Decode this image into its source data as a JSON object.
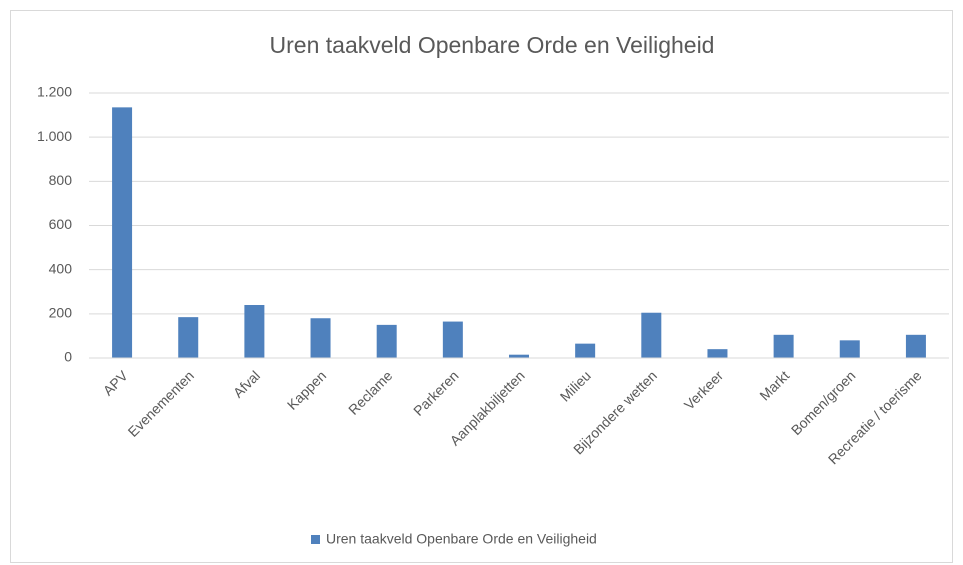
{
  "chart_data": {
    "type": "bar",
    "title": "Uren taakveld Openbare Orde en Veiligheid",
    "categories": [
      "APV",
      "Evenementen",
      "Afval",
      "Kappen",
      "Reclame",
      "Parkeren",
      "Aanplakbiljetten",
      "Milieu",
      "Bijzondere wetten",
      "Verkeer",
      "Markt",
      "Bomen/groen",
      "Recreatie / toerisme"
    ],
    "series": [
      {
        "name": "Uren taakveld Openbare Orde en Veiligheid",
        "color": "#4f81bd",
        "values": [
          1135,
          185,
          240,
          180,
          150,
          165,
          15,
          65,
          205,
          40,
          105,
          80,
          105
        ]
      }
    ],
    "ylim": [
      0,
      1200
    ],
    "yticks": [
      0,
      200,
      400,
      600,
      800,
      {
        "value": 1000,
        "label": "1.000"
      },
      {
        "value": 1200,
        "label": "1.200"
      }
    ],
    "grid": true,
    "legend": "bottom"
  }
}
